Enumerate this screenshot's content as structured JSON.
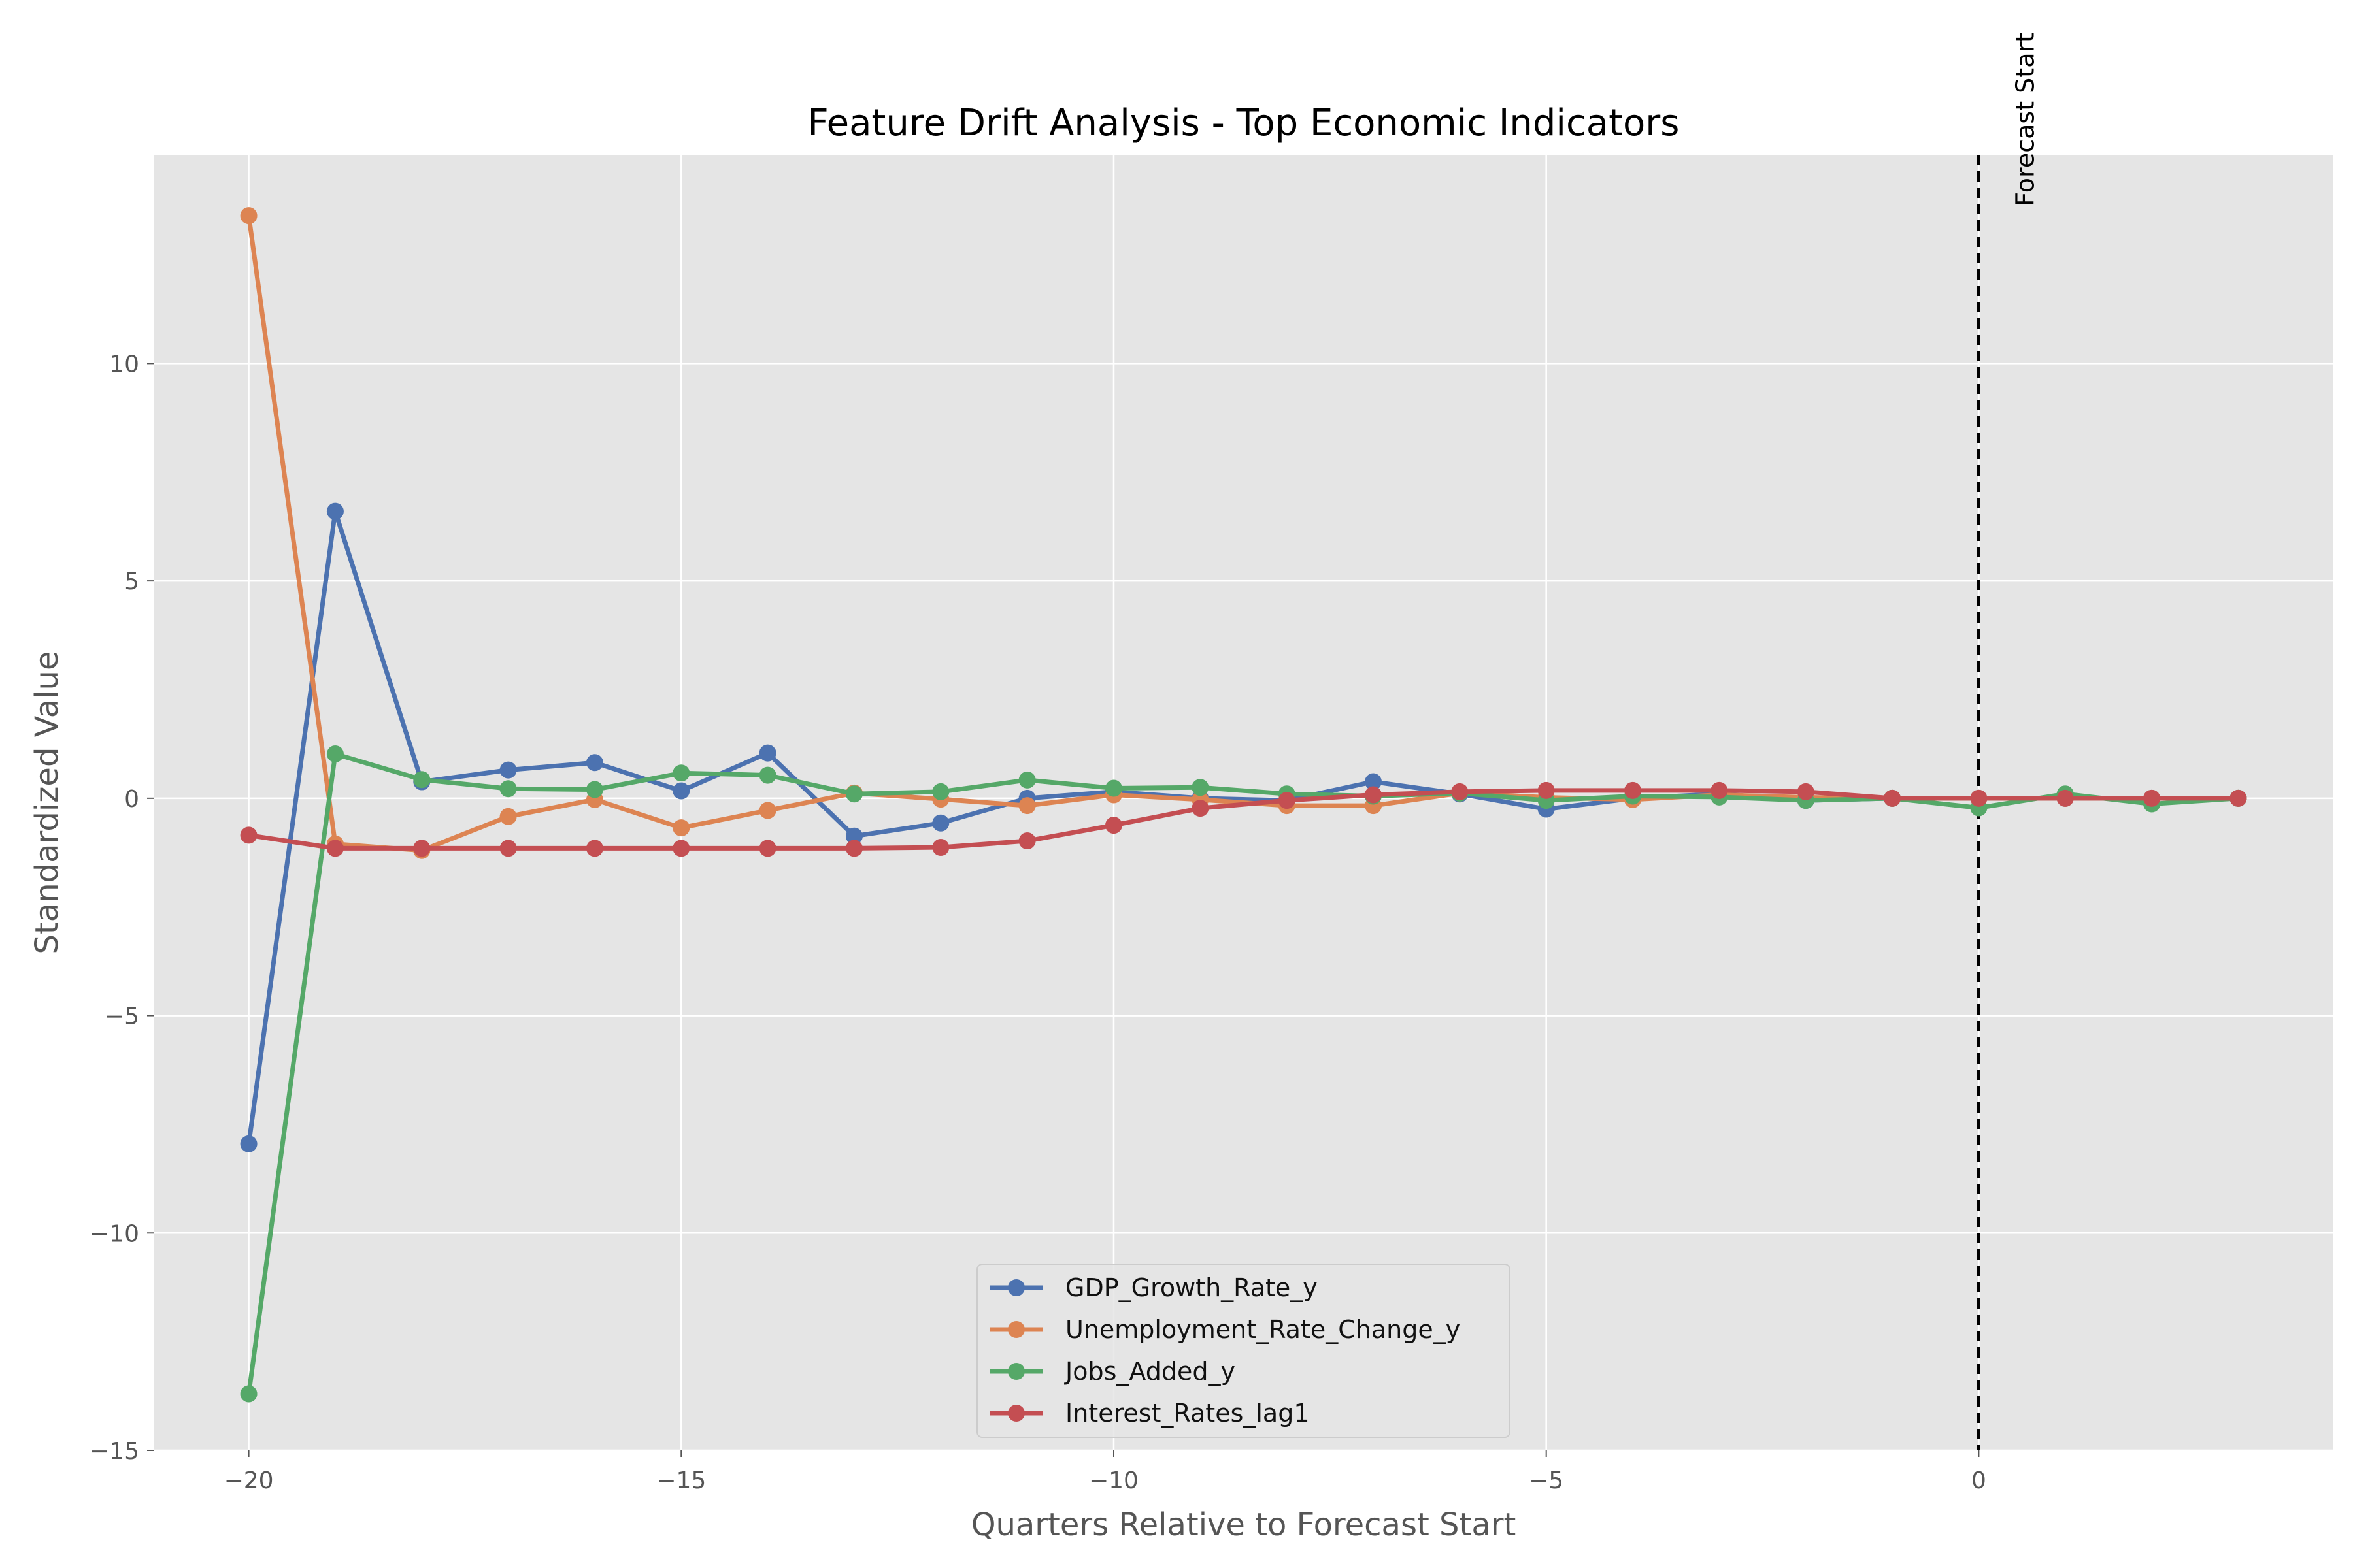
{
  "chart_data": {
    "type": "line",
    "title": "Feature Drift Analysis - Top Economic Indicators",
    "xlabel": "Quarters Relative to Forecast Start",
    "ylabel": "Standardized Value",
    "xlim": [
      -21.1,
      4.1
    ],
    "ylim": [
      -15,
      14.8
    ],
    "xticks": [
      -20,
      -15,
      -10,
      -5,
      0
    ],
    "xtick_labels": [
      "−20",
      "−15",
      "−10",
      "−5",
      "0"
    ],
    "yticks": [
      -15,
      -10,
      -5,
      0,
      5,
      10
    ],
    "ytick_labels": [
      "−15",
      "−10",
      "−5",
      "0",
      "5",
      "10"
    ],
    "grid": true,
    "legend_position": "bottom-center",
    "x": [
      -20,
      -19,
      -18,
      -17,
      -16,
      -15,
      -14,
      -13,
      -12,
      -11,
      -10,
      -9,
      -8,
      -7,
      -6,
      -5,
      -4,
      -3,
      -2,
      -1,
      0,
      1,
      2,
      3
    ],
    "series": [
      {
        "name": "GDP_Growth_Rate_y",
        "color": "#4c72b0",
        "values": [
          -7.95,
          6.6,
          0.38,
          0.65,
          0.82,
          0.17,
          1.04,
          -0.87,
          -0.57,
          0.0,
          0.15,
          0.0,
          -0.05,
          0.38,
          0.1,
          -0.25,
          0.0,
          0.1,
          -0.05,
          0.0,
          0.0,
          0.0,
          0.0,
          0.0
        ]
      },
      {
        "name": "Unemployment_Rate_Change_y",
        "color": "#dd8452",
        "values": [
          13.4,
          -1.05,
          -1.2,
          -0.42,
          -0.03,
          -0.68,
          -0.28,
          0.12,
          -0.02,
          -0.17,
          0.08,
          -0.03,
          -0.17,
          -0.17,
          0.12,
          0.02,
          -0.03,
          0.08,
          0.02,
          0.0,
          0.0,
          0.0,
          0.0,
          0.0
        ]
      },
      {
        "name": "Jobs_Added_y",
        "color": "#55a868",
        "values": [
          -13.7,
          1.02,
          0.43,
          0.22,
          0.2,
          0.58,
          0.53,
          0.1,
          0.15,
          0.42,
          0.23,
          0.25,
          0.1,
          0.05,
          0.12,
          -0.05,
          0.05,
          0.03,
          -0.05,
          0.0,
          -0.22,
          0.1,
          -0.13,
          0.0
        ]
      },
      {
        "name": "Interest_Rates_lag1",
        "color": "#c44e52",
        "values": [
          -0.85,
          -1.15,
          -1.15,
          -1.15,
          -1.15,
          -1.15,
          -1.15,
          -1.15,
          -1.13,
          -0.98,
          -0.62,
          -0.23,
          -0.05,
          0.08,
          0.15,
          0.18,
          0.18,
          0.18,
          0.15,
          0.0,
          0.0,
          0.0,
          0.0,
          0.0
        ]
      }
    ],
    "annotations": [
      {
        "text": "Forecast Start",
        "x": 0,
        "style": "vertical dashed line, black"
      }
    ]
  }
}
